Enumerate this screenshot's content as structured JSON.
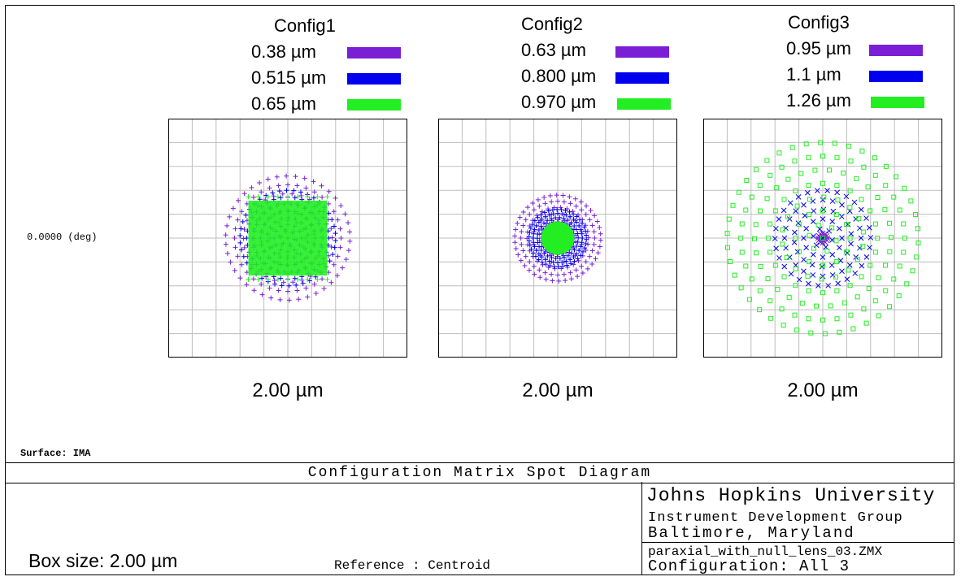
{
  "chart_data": {
    "type": "scatter",
    "title": "Configuration Matrix Spot Diagram",
    "field": "0.0000 (deg)",
    "surface": "Surface: IMA",
    "box_size": "Box size: 2.00 µm",
    "reference": "Reference   : Centroid",
    "axis_range_um": [
      -1.0,
      1.0
    ],
    "grid": true,
    "configs": [
      {
        "name": "Config1",
        "scale_label": "2.00 µm",
        "spot_radius_um": {
          "violet": 0.52,
          "blue": 0.4,
          "green": 0.33
        },
        "green_shape": "square",
        "series": [
          {
            "label": "0.38 µm",
            "color": "#7a1fd6",
            "marker": "plus"
          },
          {
            "label": "0.515 µm",
            "color": "#0000ee",
            "marker": "plus"
          },
          {
            "label": "0.65 µm",
            "color": "#22ee22",
            "marker": "plus"
          }
        ]
      },
      {
        "name": "Config2",
        "scale_label": "2.00 µm",
        "spot_radius_um": {
          "violet": 0.36,
          "blue": 0.24,
          "green": 0.14
        },
        "green_shape": "disc",
        "series": [
          {
            "label": "0.63 µm",
            "color": "#7a1fd6",
            "marker": "plus"
          },
          {
            "label": "0.800 µm",
            "color": "#0000ee",
            "marker": "plus"
          },
          {
            "label": "0.970 µm",
            "color": "#22ee22",
            "marker": "disc"
          }
        ]
      },
      {
        "name": "Config3",
        "scale_label": "2.00 µm",
        "spot_radius_um": {
          "violet": 0.04,
          "blue": 0.4,
          "green": 0.8
        },
        "green_shape": "square",
        "series": [
          {
            "label": "0.95 µm",
            "color": "#7a1fd6",
            "marker": "cross"
          },
          {
            "label": "1.1 µm",
            "color": "#0000ee",
            "marker": "cross"
          },
          {
            "label": "1.26 µm",
            "color": "#22ee22",
            "marker": "square"
          }
        ]
      }
    ]
  },
  "footer": {
    "institution": "Johns Hopkins University",
    "group": "Instrument Development Group",
    "location": "Baltimore, Maryland",
    "filename": "paraxial_with_null_lens_03.ZMX",
    "configuration": "Configuration: All 3"
  }
}
